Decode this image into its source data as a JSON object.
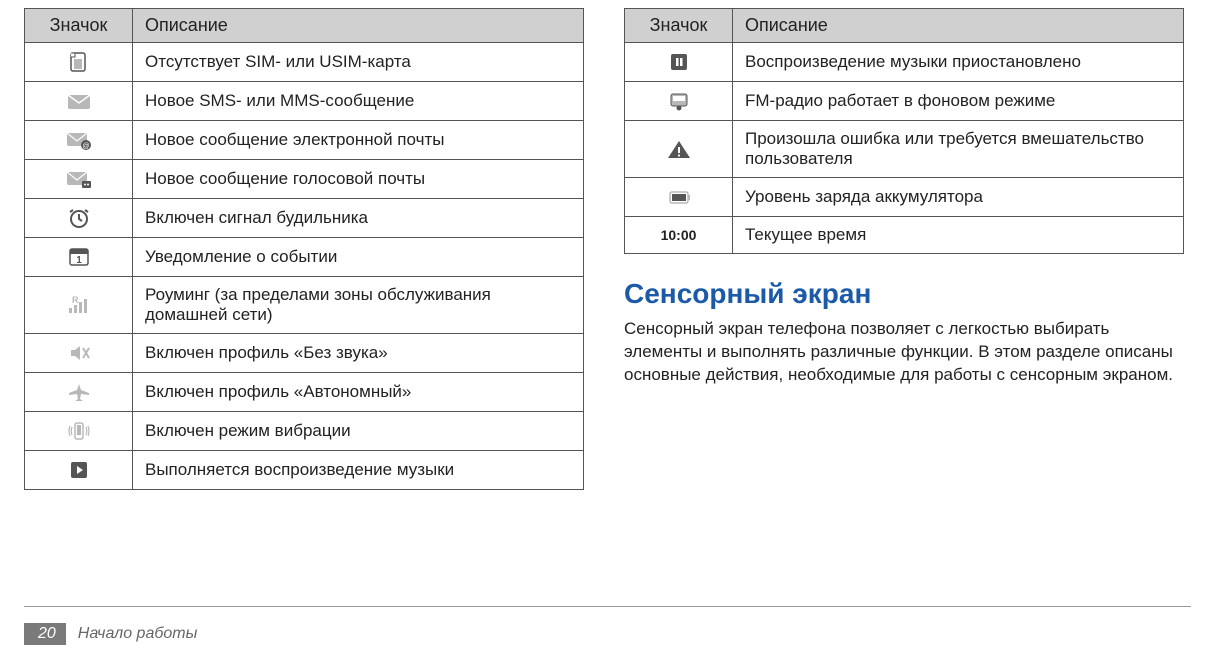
{
  "headers": {
    "icon": "Значок",
    "desc": "Описание"
  },
  "left_rows": [
    {
      "icon": "sim",
      "desc": "Отсутствует SIM- или USIM-карта"
    },
    {
      "icon": "sms",
      "desc": "Новое SMS- или MMS-сообщение"
    },
    {
      "icon": "email",
      "desc": "Новое сообщение электронной почты"
    },
    {
      "icon": "voicemail",
      "desc": "Новое сообщение голосовой почты"
    },
    {
      "icon": "alarm",
      "desc": "Включен сигнал будильника"
    },
    {
      "icon": "event",
      "desc": "Уведомление о событии"
    },
    {
      "icon": "roaming",
      "desc": "Роуминг (за пределами зоны обслуживания домашней сети)"
    },
    {
      "icon": "mute",
      "desc": "Включен профиль «Без звука»"
    },
    {
      "icon": "airplane",
      "desc": "Включен профиль «Автономный»"
    },
    {
      "icon": "vibrate",
      "desc": "Включен режим вибрации"
    },
    {
      "icon": "play",
      "desc": "Выполняется воспроизведение музыки"
    }
  ],
  "right_rows": [
    {
      "icon": "pause",
      "desc": "Воспроизведение музыки приостановлено"
    },
    {
      "icon": "radio",
      "desc": "FM-радио работает в фоновом режиме"
    },
    {
      "icon": "warning",
      "desc": "Произошла ошибка или требуется вмешательство пользователя"
    },
    {
      "icon": "battery",
      "desc": "Уровень заряда аккумулятора"
    },
    {
      "icon": "time",
      "text": "10:00",
      "desc": "Текущее время"
    }
  ],
  "section": {
    "title": "Сенсорный экран",
    "body": "Сенсорный экран телефона позволяет с легкостью выбирать элементы и выполнять различные функции. В этом разделе описаны основные действия, необходимые для работы с сенсорным экраном."
  },
  "footer": {
    "page": "20",
    "title": "Начало работы"
  },
  "colors": {
    "header_bg": "#d0d0d0",
    "border": "#555555",
    "section_title": "#1a5aa8",
    "icon_gray": "#b8b8b8",
    "icon_dark": "#555555",
    "footer_bg": "#7a7a7a"
  }
}
